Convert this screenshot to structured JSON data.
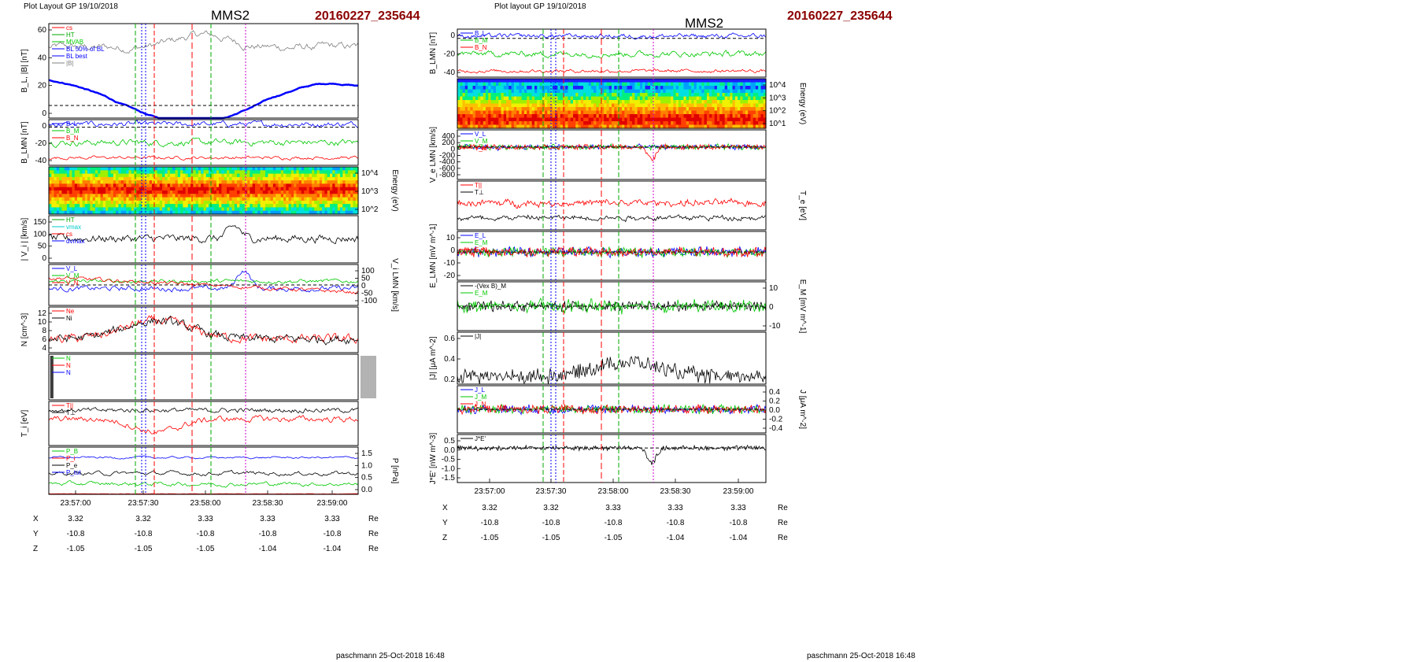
{
  "left": {
    "header": "Plot Layout GP 19/10/2018",
    "spacecraft": "MMS2",
    "event_id": "20160227_235644",
    "footer": "paschmann 25-Oct-2018 16:48",
    "time_ticks": [
      "23:57:00",
      "23:57:30",
      "23:58:00",
      "23:58:30",
      "23:59:00"
    ],
    "ephem": {
      "rows": [
        {
          "label": "X",
          "values": [
            "3.32",
            "3.32",
            "3.33",
            "3.33",
            "3.33"
          ],
          "unit": "Re"
        },
        {
          "label": "Y",
          "values": [
            "-10.8",
            "-10.8",
            "-10.8",
            "-10.8",
            "-10.8"
          ],
          "unit": "Re"
        },
        {
          "label": "Z",
          "values": [
            "-1.05",
            "-1.05",
            "-1.05",
            "-1.04",
            "-1.04"
          ],
          "unit": "Re"
        }
      ]
    },
    "panels": [
      {
        "ylabel": "B_L, |B| [nT]",
        "yticks": [
          "60",
          "40",
          "20",
          "0"
        ],
        "legend": [
          "cs",
          "HT",
          "MVAB",
          "BL 50% of BL",
          "BL best",
          "|B|"
        ]
      },
      {
        "ylabel": "B_LMN [nT]",
        "yticks": [
          "0",
          "-20",
          "-40"
        ],
        "legend": [
          "B_L",
          "B_M",
          "B_N"
        ]
      },
      {
        "ylabel": "Energy (eV)",
        "yticks_right": [
          "10^4",
          "10^3",
          "10^2"
        ]
      },
      {
        "ylabel": "| V_i | [km/s]",
        "yticks": [
          "150",
          "100",
          "50",
          "0"
        ],
        "legend": [
          "HT",
          "vmax",
          "cs",
          "dvmax"
        ]
      },
      {
        "ylabel": "V_i LMN [km/s]",
        "yticks_right": [
          "100",
          "50",
          "0",
          "-50",
          "-100"
        ],
        "legend": [
          "V_L",
          "V_M",
          "V_N"
        ]
      },
      {
        "ylabel": "N [cm^-3]",
        "yticks": [
          "12",
          "10",
          "8",
          "6",
          "4"
        ],
        "legend": [
          "Ne",
          "Ni"
        ]
      },
      {
        "ylabel": "",
        "legend": [
          "N",
          "N",
          "N"
        ]
      },
      {
        "ylabel": "T_i [eV]",
        "legend": [
          "T||",
          "T⊥"
        ]
      },
      {
        "ylabel": "P [nPa]",
        "yticks_right": [
          "1.5",
          "1.0",
          "0.5",
          "0.0"
        ],
        "legend": [
          "P_B",
          "P_i",
          "P_e",
          "P_tot"
        ]
      }
    ]
  },
  "right": {
    "header": "Plot layout GP 19/10/2018",
    "spacecraft": "MMS2",
    "event_id": "20160227_235644",
    "footer": "paschmann 25-Oct-2018 16:48",
    "time_ticks": [
      "23:57:00",
      "23:57:30",
      "23:58:00",
      "23:58:30",
      "23:59:00"
    ],
    "ephem": {
      "rows": [
        {
          "label": "X",
          "values": [
            "3.32",
            "3.32",
            "3.33",
            "3.33",
            "3.33"
          ],
          "unit": "Re"
        },
        {
          "label": "Y",
          "values": [
            "-10.8",
            "-10.8",
            "-10.8",
            "-10.8",
            "-10.8"
          ],
          "unit": "Re"
        },
        {
          "label": "Z",
          "values": [
            "-1.05",
            "-1.05",
            "-1.05",
            "-1.04",
            "-1.04"
          ],
          "unit": "Re"
        }
      ]
    },
    "panels": [
      {
        "ylabel": "B_LMN [nT]",
        "yticks": [
          "0",
          "-20",
          "-40"
        ],
        "legend": [
          "B_L",
          "B_M",
          "B_N"
        ]
      },
      {
        "ylabel": "Energy (eV)",
        "yticks_right": [
          "10^4",
          "10^3",
          "10^2",
          "10^1"
        ]
      },
      {
        "ylabel": "V_e LMN [km/s]",
        "yticks": [
          "400",
          "200",
          "0",
          "-200",
          "-400",
          "-600",
          "-800"
        ],
        "legend": [
          "V_L",
          "V_M",
          "V_N"
        ]
      },
      {
        "ylabel": "T_e [eV]",
        "legend": [
          "T||",
          "T⊥"
        ]
      },
      {
        "ylabel": "E_LMN [mV m^-1]",
        "yticks": [
          "10",
          "0",
          "-10",
          "-20"
        ],
        "legend": [
          "E_L",
          "E_M",
          "E_N"
        ]
      },
      {
        "ylabel": "E_M [mV m^-1]",
        "yticks_right": [
          "10",
          "0",
          "-10"
        ],
        "legend": [
          "-(Vex B)_M",
          "E_M"
        ]
      },
      {
        "ylabel": "|J| [μA m^-2]",
        "yticks": [
          "0.6",
          "0.4",
          "0.2"
        ],
        "legend": [
          "|J|"
        ]
      },
      {
        "ylabel": "J [μA m^-2]",
        "yticks_right": [
          "0.4",
          "0.2",
          "0.0",
          "-0.2",
          "-0.4"
        ],
        "legend": [
          "J_L",
          "J_M",
          "J_N"
        ]
      },
      {
        "ylabel": "J*E' [nW m^-3]",
        "yticks": [
          "0.5",
          "0.0",
          "-0.5",
          "-1.0",
          "-1.5"
        ],
        "legend": [
          "J*E'"
        ]
      }
    ]
  },
  "chart_data": {
    "type": "line",
    "x_range": [
      "23:56:44",
      "23:59:10"
    ],
    "colors": {
      "blue": "#0000ff",
      "green": "#00c800",
      "red": "#ff0000",
      "black": "#000000",
      "gray": "#808080",
      "magenta": "#cc00cc",
      "title_red": "#8b0000"
    }
  }
}
